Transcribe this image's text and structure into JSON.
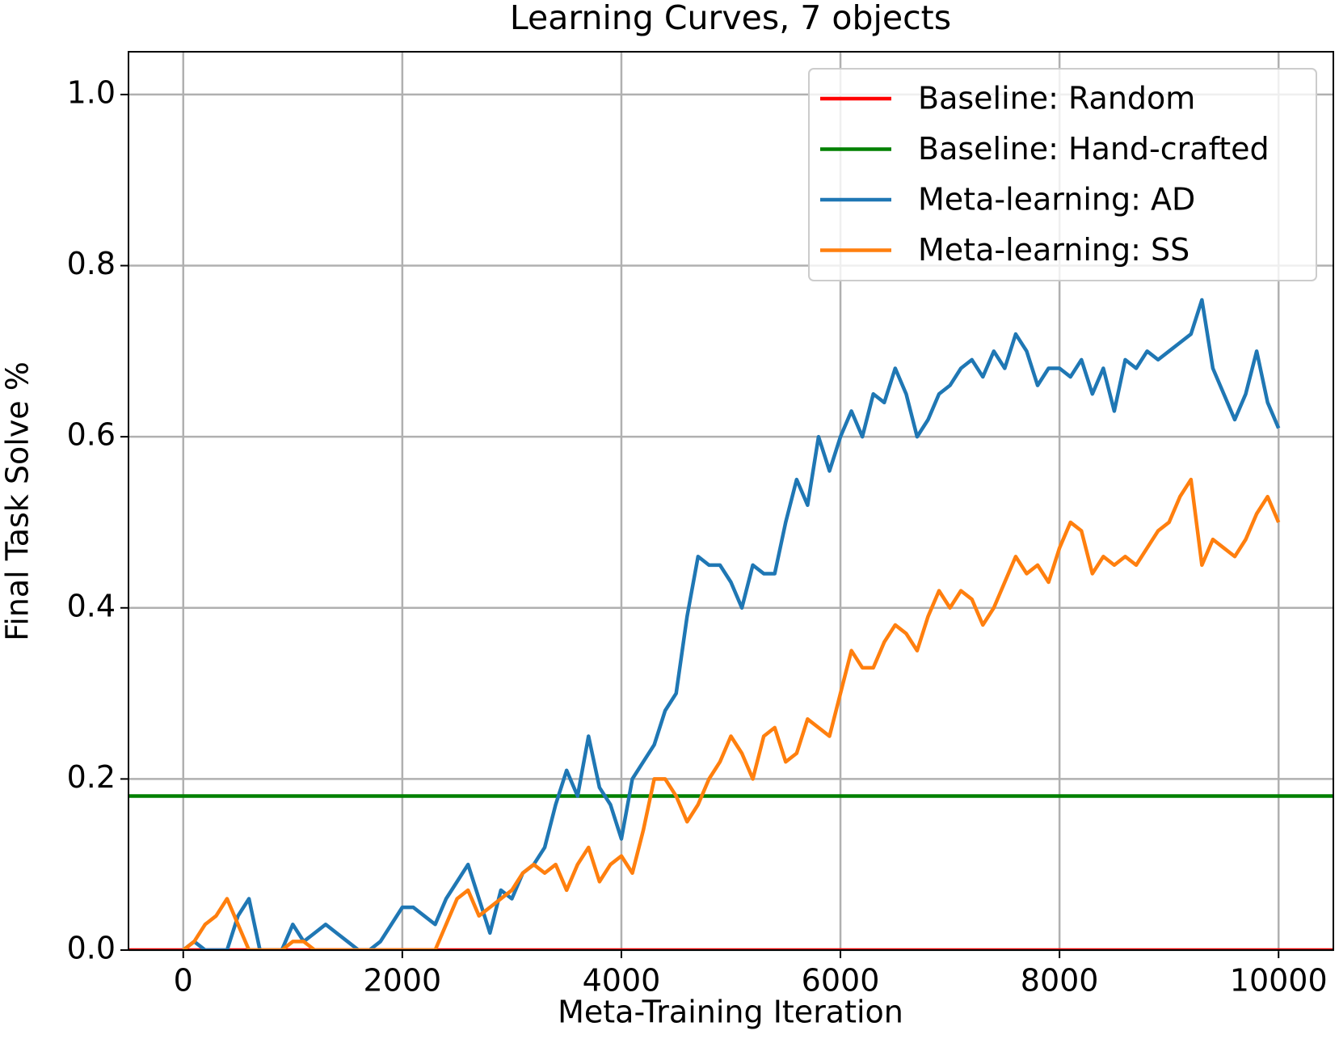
{
  "chart_data": {
    "type": "line",
    "title": "Learning Curves, 7 objects",
    "xlabel": "Meta-Training Iteration",
    "ylabel": "Final Task Solve %",
    "xlim": [
      -500,
      10500
    ],
    "ylim": [
      0,
      1.05
    ],
    "xticks": [
      0,
      2000,
      4000,
      6000,
      8000,
      10000
    ],
    "yticks": [
      {
        "value": 0,
        "label": "0.0"
      },
      0.2,
      0.4,
      0.6,
      0.8,
      {
        "value": 1,
        "label": "1.0"
      }
    ],
    "grid": true,
    "legend": "upper right",
    "x": [
      0,
      100,
      200,
      300,
      400,
      500,
      600,
      700,
      800,
      900,
      1000,
      1100,
      1200,
      1300,
      1400,
      1500,
      1600,
      1700,
      1800,
      1900,
      2000,
      2100,
      2200,
      2300,
      2400,
      2500,
      2600,
      2700,
      2800,
      2900,
      3000,
      3100,
      3200,
      3300,
      3400,
      3500,
      3600,
      3700,
      3800,
      3900,
      4000,
      4100,
      4200,
      4300,
      4400,
      4500,
      4600,
      4700,
      4800,
      4900,
      5000,
      5100,
      5200,
      5300,
      5400,
      5500,
      5600,
      5700,
      5800,
      5900,
      6000,
      6100,
      6200,
      6300,
      6400,
      6500,
      6600,
      6700,
      6800,
      6900,
      7000,
      7100,
      7200,
      7300,
      7400,
      7500,
      7600,
      7700,
      7800,
      7900,
      8000,
      8100,
      8200,
      8300,
      8400,
      8500,
      8600,
      8700,
      8800,
      8900,
      9000,
      9100,
      9200,
      9300,
      9400,
      9500,
      9600,
      9700,
      9800,
      9900,
      10000
    ],
    "series": [
      {
        "name": "Baseline: Random",
        "color": "#ff0000",
        "x": [
          -500,
          10500
        ],
        "values": [
          0,
          0
        ]
      },
      {
        "name": "Baseline: Hand-crafted",
        "color": "#008000",
        "x": [
          -500,
          10500
        ],
        "values": [
          0.18,
          0.18
        ]
      },
      {
        "name": "Meta-learning: AD",
        "color": "#1f77b4",
        "values": [
          0,
          0.01,
          0,
          0,
          0,
          0.04,
          0.06,
          0,
          0,
          0,
          0.03,
          0.01,
          0.02,
          0.03,
          0.02,
          0.01,
          0,
          0,
          0.01,
          0.03,
          0.05,
          0.05,
          0.04,
          0.03,
          0.06,
          0.08,
          0.1,
          0.06,
          0.02,
          0.07,
          0.06,
          0.09,
          0.1,
          0.12,
          0.17,
          0.21,
          0.18,
          0.25,
          0.19,
          0.17,
          0.13,
          0.2,
          0.22,
          0.24,
          0.28,
          0.3,
          0.39,
          0.46,
          0.45,
          0.45,
          0.43,
          0.4,
          0.45,
          0.44,
          0.44,
          0.5,
          0.55,
          0.52,
          0.6,
          0.56,
          0.6,
          0.63,
          0.6,
          0.65,
          0.64,
          0.68,
          0.65,
          0.6,
          0.62,
          0.65,
          0.66,
          0.68,
          0.69,
          0.67,
          0.7,
          0.68,
          0.72,
          0.7,
          0.66,
          0.68,
          0.68,
          0.67,
          0.69,
          0.65,
          0.68,
          0.63,
          0.69,
          0.68,
          0.7,
          0.69,
          0.7,
          0.71,
          0.72,
          0.76,
          0.68,
          0.65,
          0.62,
          0.65,
          0.7,
          0.64,
          0.61
        ]
      },
      {
        "name": "Meta-learning: SS",
        "color": "#ff7f0e",
        "values": [
          0,
          0.01,
          0.03,
          0.04,
          0.06,
          0.03,
          0,
          0,
          0,
          0,
          0.01,
          0.01,
          0,
          0,
          0,
          0,
          0,
          0,
          0,
          0,
          0,
          0,
          0,
          0,
          0.03,
          0.06,
          0.07,
          0.04,
          0.05,
          0.06,
          0.07,
          0.09,
          0.1,
          0.09,
          0.1,
          0.07,
          0.1,
          0.12,
          0.08,
          0.1,
          0.11,
          0.09,
          0.14,
          0.2,
          0.2,
          0.18,
          0.15,
          0.17,
          0.2,
          0.22,
          0.25,
          0.23,
          0.2,
          0.25,
          0.26,
          0.22,
          0.23,
          0.27,
          0.26,
          0.25,
          0.3,
          0.35,
          0.33,
          0.33,
          0.36,
          0.38,
          0.37,
          0.35,
          0.39,
          0.42,
          0.4,
          0.42,
          0.41,
          0.38,
          0.4,
          0.43,
          0.46,
          0.44,
          0.45,
          0.43,
          0.47,
          0.5,
          0.49,
          0.44,
          0.46,
          0.45,
          0.46,
          0.45,
          0.47,
          0.49,
          0.5,
          0.53,
          0.55,
          0.45,
          0.48,
          0.47,
          0.46,
          0.48,
          0.51,
          0.53,
          0.5
        ]
      }
    ]
  }
}
